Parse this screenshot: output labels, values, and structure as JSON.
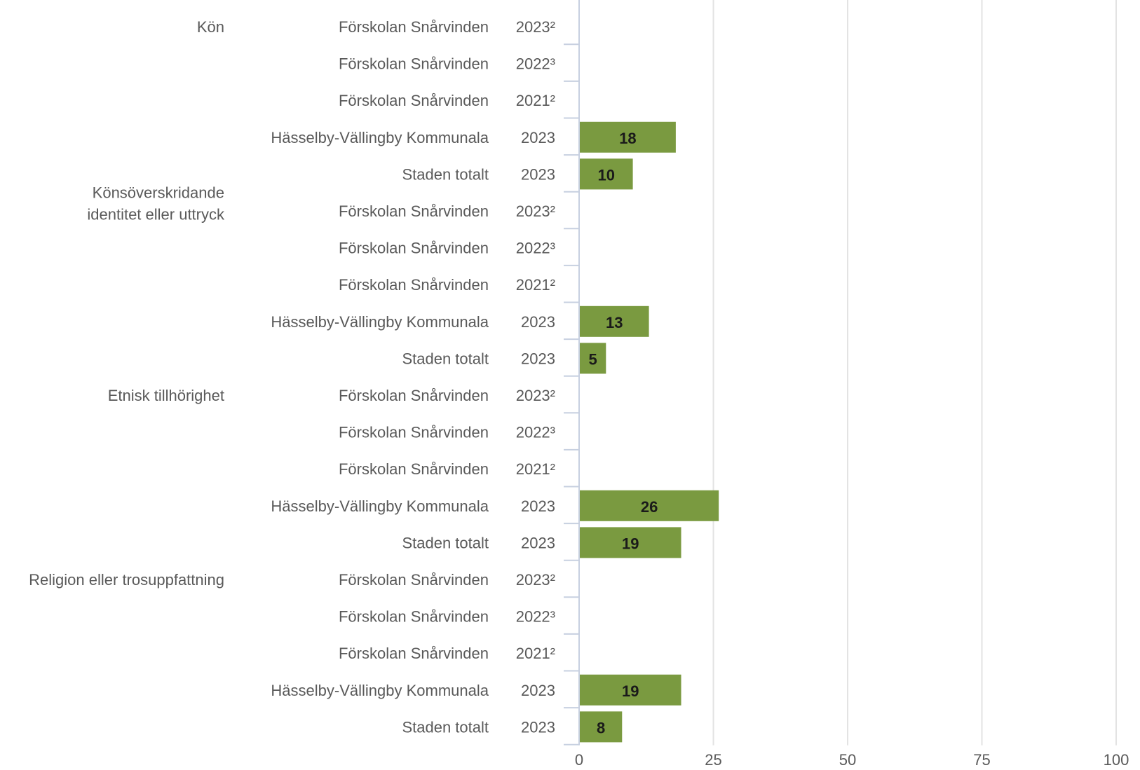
{
  "chart_data": {
    "type": "bar",
    "orientation": "horizontal",
    "title": "",
    "xlabel": "",
    "ylabel": "",
    "xlim": [
      0,
      100
    ],
    "x_ticks": [
      "0",
      "25",
      "50",
      "75",
      "100"
    ],
    "grid": true,
    "bar_color": "#7a9a40",
    "groups": [
      {
        "label": [
          "Kön"
        ],
        "rows": [
          {
            "entity": "Förskolan Snårvinden",
            "year": "2023²",
            "value": null
          },
          {
            "entity": "Förskolan Snårvinden",
            "year": "2022³",
            "value": null
          },
          {
            "entity": "Förskolan Snårvinden",
            "year": "2021²",
            "value": null
          },
          {
            "entity": "Hässelby-Vällingby Kommunala",
            "year": "2023",
            "value": 18
          },
          {
            "entity": "Staden totalt",
            "year": "2023",
            "value": 10
          }
        ]
      },
      {
        "label": [
          "Könsöverskridande",
          "identitet eller uttryck"
        ],
        "rows": [
          {
            "entity": "Förskolan Snårvinden",
            "year": "2023²",
            "value": null
          },
          {
            "entity": "Förskolan Snårvinden",
            "year": "2022³",
            "value": null
          },
          {
            "entity": "Förskolan Snårvinden",
            "year": "2021²",
            "value": null
          },
          {
            "entity": "Hässelby-Vällingby Kommunala",
            "year": "2023",
            "value": 13
          },
          {
            "entity": "Staden totalt",
            "year": "2023",
            "value": 5
          }
        ]
      },
      {
        "label": [
          "Etnisk tillhörighet"
        ],
        "rows": [
          {
            "entity": "Förskolan Snårvinden",
            "year": "2023²",
            "value": null
          },
          {
            "entity": "Förskolan Snårvinden",
            "year": "2022³",
            "value": null
          },
          {
            "entity": "Förskolan Snårvinden",
            "year": "2021²",
            "value": null
          },
          {
            "entity": "Hässelby-Vällingby Kommunala",
            "year": "2023",
            "value": 26
          },
          {
            "entity": "Staden totalt",
            "year": "2023",
            "value": 19
          }
        ]
      },
      {
        "label": [
          "Religion eller trosuppfattning"
        ],
        "rows": [
          {
            "entity": "Förskolan Snårvinden",
            "year": "2023²",
            "value": null
          },
          {
            "entity": "Förskolan Snårvinden",
            "year": "2022³",
            "value": null
          },
          {
            "entity": "Förskolan Snårvinden",
            "year": "2021²",
            "value": null
          },
          {
            "entity": "Hässelby-Vällingby Kommunala",
            "year": "2023",
            "value": 19
          },
          {
            "entity": "Staden totalt",
            "year": "2023",
            "value": 8
          }
        ]
      }
    ]
  }
}
